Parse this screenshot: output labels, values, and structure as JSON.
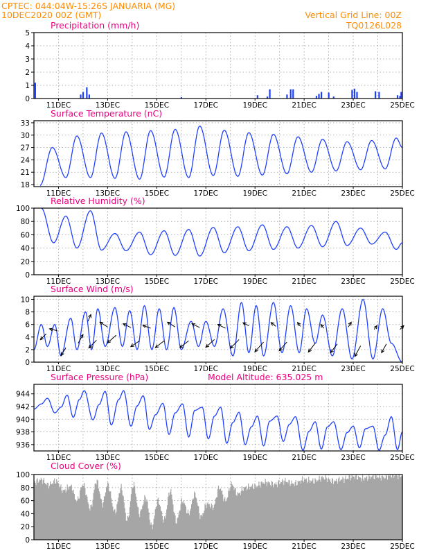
{
  "header": {
    "line1": "CPTEC:   044:04W-15:26S   JANUARIA (MG)",
    "line2": "10DEC2020 00Z (GMT)",
    "right1": "Vertical Grid Line: 00Z",
    "right2": "TQ0126L028"
  },
  "colors": {
    "header": "#ff8c00",
    "title": "#e8007c",
    "series": "#1f3fff",
    "wind_arrow": "#000000",
    "cloud": "#a6a6a6",
    "grid": "#999999"
  },
  "date_ticks": [
    "11DEC",
    "13DEC",
    "15DEC",
    "17DEC",
    "19DEC",
    "21DEC",
    "23DEC",
    "25DEC"
  ],
  "chart_data": [
    {
      "id": "precip",
      "type": "bar",
      "title": "Precipitation (mm/h)",
      "x_unit": "days since 10DEC2020 00Z",
      "xlim": [
        0,
        15
      ],
      "ylim": [
        0,
        5
      ],
      "yticks": [
        0,
        1,
        2,
        3,
        4,
        5
      ],
      "bars": [
        [
          0.05,
          1.2
        ],
        [
          1.9,
          0.3
        ],
        [
          2.0,
          0.5
        ],
        [
          2.15,
          0.85
        ],
        [
          2.25,
          0.3
        ],
        [
          6.0,
          0.1
        ],
        [
          9.1,
          0.25
        ],
        [
          9.5,
          0.15
        ],
        [
          9.6,
          0.7
        ],
        [
          10.3,
          0.3
        ],
        [
          10.45,
          0.7
        ],
        [
          10.55,
          0.7
        ],
        [
          11.5,
          0.2
        ],
        [
          11.6,
          0.35
        ],
        [
          11.7,
          0.5
        ],
        [
          12.0,
          0.45
        ],
        [
          12.2,
          0.15
        ],
        [
          12.95,
          0.65
        ],
        [
          13.05,
          0.75
        ],
        [
          13.15,
          0.5
        ],
        [
          13.9,
          0.55
        ],
        [
          14.05,
          0.5
        ],
        [
          14.8,
          0.25
        ],
        [
          14.9,
          0.2
        ],
        [
          14.95,
          0.5
        ]
      ]
    },
    {
      "id": "temp",
      "type": "line",
      "title": "Surface Temperature (nC)",
      "xlim": [
        0,
        15
      ],
      "ylim": [
        17.5,
        33.5
      ],
      "yticks": [
        18,
        21,
        24,
        27,
        30,
        33
      ],
      "daily": [
        [
          0.25,
          17.8
        ],
        [
          0.75,
          27
        ],
        [
          1.3,
          19.7
        ],
        [
          1.75,
          29.8
        ],
        [
          2.3,
          19.7
        ],
        [
          2.75,
          30.5
        ],
        [
          3.3,
          19.5
        ],
        [
          3.75,
          30.8
        ],
        [
          4.3,
          19.3
        ],
        [
          4.75,
          31.1
        ],
        [
          5.3,
          19.8
        ],
        [
          5.75,
          31.4
        ],
        [
          6.3,
          19.7
        ],
        [
          6.75,
          32.2
        ],
        [
          7.3,
          20.2
        ],
        [
          7.75,
          31.2
        ],
        [
          8.3,
          20
        ],
        [
          8.75,
          30.6
        ],
        [
          9.3,
          20.3
        ],
        [
          9.75,
          30.2
        ],
        [
          10.3,
          20.6
        ],
        [
          10.75,
          29.6
        ],
        [
          11.3,
          21
        ],
        [
          11.75,
          29
        ],
        [
          12.3,
          21.3
        ],
        [
          12.75,
          28.4
        ],
        [
          13.3,
          21.6
        ],
        [
          13.75,
          28.7
        ],
        [
          14.3,
          21.8
        ],
        [
          14.75,
          29.3
        ],
        [
          15,
          27
        ]
      ]
    },
    {
      "id": "rh",
      "type": "line",
      "title": "Relative Humidity (%)",
      "xlim": [
        0,
        15
      ],
      "ylim": [
        0,
        100
      ],
      "yticks": [
        0,
        20,
        40,
        60,
        80,
        100
      ],
      "daily": [
        [
          0.3,
          100
        ],
        [
          0.8,
          48
        ],
        [
          1.3,
          88
        ],
        [
          1.75,
          40
        ],
        [
          2.3,
          96
        ],
        [
          2.75,
          37
        ],
        [
          3.3,
          62
        ],
        [
          3.75,
          36
        ],
        [
          4.3,
          64
        ],
        [
          4.75,
          30
        ],
        [
          5.3,
          66
        ],
        [
          5.75,
          29
        ],
        [
          6.3,
          68
        ],
        [
          6.75,
          28
        ],
        [
          7.3,
          71
        ],
        [
          7.75,
          33
        ],
        [
          8.3,
          72
        ],
        [
          8.75,
          36
        ],
        [
          9.3,
          75
        ],
        [
          9.75,
          38
        ],
        [
          10.3,
          72
        ],
        [
          10.75,
          40
        ],
        [
          11.3,
          74
        ],
        [
          11.75,
          42
        ],
        [
          12.3,
          80
        ],
        [
          12.75,
          44
        ],
        [
          13.3,
          70
        ],
        [
          13.75,
          46
        ],
        [
          14.3,
          64
        ],
        [
          14.75,
          38
        ],
        [
          15,
          48
        ]
      ]
    },
    {
      "id": "wind",
      "type": "line",
      "title": "Surface Wind (m/s)",
      "xlim": [
        0,
        15
      ],
      "ylim": [
        0,
        10.5
      ],
      "yticks": [
        0,
        2,
        4,
        6,
        8,
        10
      ],
      "daily": [
        [
          0,
          2
        ],
        [
          0.3,
          6
        ],
        [
          0.55,
          2.5
        ],
        [
          0.85,
          6
        ],
        [
          1.1,
          1
        ],
        [
          1.5,
          7
        ],
        [
          1.75,
          2
        ],
        [
          2.1,
          8
        ],
        [
          2.35,
          2
        ],
        [
          2.6,
          8.5
        ],
        [
          2.9,
          2.5
        ],
        [
          3.3,
          8.7
        ],
        [
          3.6,
          2.5
        ],
        [
          3.9,
          8.2
        ],
        [
          4.2,
          2
        ],
        [
          4.5,
          9
        ],
        [
          4.8,
          2
        ],
        [
          5.1,
          8.5
        ],
        [
          5.4,
          2
        ],
        [
          5.7,
          8.7
        ],
        [
          6.0,
          2
        ],
        [
          6.4,
          6.5
        ],
        [
          6.7,
          2.5
        ],
        [
          7.0,
          6.5
        ],
        [
          7.35,
          2.5
        ],
        [
          7.7,
          8.5
        ],
        [
          8.1,
          1
        ],
        [
          8.45,
          9.5
        ],
        [
          8.75,
          1.5
        ],
        [
          9.05,
          9
        ],
        [
          9.35,
          1
        ],
        [
          9.75,
          9.5
        ],
        [
          10.1,
          1.5
        ],
        [
          10.45,
          9
        ],
        [
          10.8,
          1.5
        ],
        [
          11.1,
          8.5
        ],
        [
          11.45,
          3
        ],
        [
          11.75,
          7.5
        ],
        [
          12.15,
          1
        ],
        [
          12.55,
          8.5
        ],
        [
          12.95,
          0.5
        ],
        [
          13.4,
          10
        ],
        [
          13.8,
          0.5
        ],
        [
          14.2,
          8.5
        ],
        [
          14.55,
          3
        ],
        [
          15,
          0
        ]
      ],
      "arrows": [
        [
          0.5,
          4.5,
          -0.6,
          -0.6
        ],
        [
          0.95,
          5,
          -0.8,
          0.2
        ],
        [
          1.3,
          2.3,
          -0.5,
          -0.8
        ],
        [
          1.8,
          3,
          0.5,
          0.9
        ],
        [
          2.2,
          6.5,
          0.3,
          0.7
        ],
        [
          2.55,
          3.5,
          -0.8,
          -0.8
        ],
        [
          3.0,
          5.6,
          -0.8,
          0.5
        ],
        [
          3.35,
          4.3,
          -0.9,
          -0.8
        ],
        [
          3.95,
          5.5,
          -0.8,
          0.4
        ],
        [
          4.3,
          3.4,
          -0.9,
          -0.6
        ],
        [
          4.75,
          5.4,
          -0.8,
          0.3
        ],
        [
          5.3,
          3.4,
          -0.9,
          -0.7
        ],
        [
          5.75,
          5.6,
          -0.8,
          0.5
        ],
        [
          6.3,
          3.4,
          -0.9,
          -0.7
        ],
        [
          6.75,
          5.5,
          -0.8,
          0.4
        ],
        [
          7.35,
          3.6,
          -0.9,
          -0.8
        ],
        [
          7.8,
          5.4,
          -0.8,
          0.4
        ],
        [
          8.35,
          3.6,
          -0.9,
          -0.9
        ],
        [
          8.75,
          5.8,
          -0.6,
          0.3
        ],
        [
          9.35,
          3.2,
          -0.9,
          -1.0
        ],
        [
          9.85,
          5.7,
          -0.5,
          0.4
        ],
        [
          10.3,
          3.2,
          -0.8,
          -0.9
        ],
        [
          10.85,
          5.7,
          -0.3,
          0.4
        ],
        [
          11.45,
          3.0,
          -0.7,
          -0.9
        ],
        [
          11.8,
          5.4,
          -0.3,
          0.4
        ],
        [
          12.35,
          2.9,
          -0.7,
          -0.9
        ],
        [
          12.8,
          5.6,
          0.3,
          0.5
        ],
        [
          13.3,
          2.6,
          -0.6,
          -1.1
        ],
        [
          13.85,
          5.2,
          0.3,
          0.4
        ],
        [
          14.35,
          2.9,
          -0.5,
          -0.9
        ],
        [
          14.9,
          5.2,
          0.4,
          0.4
        ]
      ]
    },
    {
      "id": "pres",
      "type": "line",
      "title": "Surface Pressure (hPa)",
      "annotation": "Model Altitude: 635.025 m",
      "xlim": [
        0,
        15
      ],
      "ylim": [
        935,
        945.5
      ],
      "yticks": [
        936,
        938,
        940,
        942,
        944
      ],
      "daily": [
        [
          0,
          941.6
        ],
        [
          0.3,
          942.4
        ],
        [
          0.55,
          943.3
        ],
        [
          0.85,
          941
        ],
        [
          1.1,
          941.9
        ],
        [
          1.35,
          943.8
        ],
        [
          1.6,
          940.3
        ],
        [
          1.85,
          943.1
        ],
        [
          2.05,
          944.5
        ],
        [
          2.4,
          939.9
        ],
        [
          2.65,
          942.3
        ],
        [
          2.9,
          944.4
        ],
        [
          3.15,
          939.1
        ],
        [
          3.45,
          943.1
        ],
        [
          3.65,
          944.5
        ],
        [
          3.95,
          938.9
        ],
        [
          4.2,
          942.1
        ],
        [
          4.45,
          943.7
        ],
        [
          4.7,
          938.4
        ],
        [
          4.95,
          940.7
        ],
        [
          5.25,
          942.5
        ],
        [
          5.5,
          937.6
        ],
        [
          5.75,
          941
        ],
        [
          6.05,
          942.4
        ],
        [
          6.3,
          937.2
        ],
        [
          6.55,
          941.4
        ],
        [
          6.85,
          941.9
        ],
        [
          7.1,
          936.9
        ],
        [
          7.35,
          940.5
        ],
        [
          7.6,
          941.9
        ],
        [
          7.85,
          936.2
        ],
        [
          8.1,
          939.5
        ],
        [
          8.35,
          941.1
        ],
        [
          8.6,
          936
        ],
        [
          8.85,
          938.8
        ],
        [
          9.1,
          940.5
        ],
        [
          9.35,
          935.8
        ],
        [
          9.6,
          939.7
        ],
        [
          9.9,
          940.5
        ],
        [
          10.15,
          936.5
        ],
        [
          10.4,
          939.2
        ],
        [
          10.65,
          940.4
        ],
        [
          10.95,
          935.1
        ],
        [
          11.2,
          938.1
        ],
        [
          11.45,
          939.6
        ],
        [
          11.7,
          935.3
        ],
        [
          11.95,
          938.8
        ],
        [
          12.2,
          939.6
        ],
        [
          12.5,
          935.2
        ],
        [
          12.75,
          937.9
        ],
        [
          13.0,
          938.9
        ],
        [
          13.25,
          935.5
        ],
        [
          13.5,
          938.5
        ],
        [
          13.8,
          938.9
        ],
        [
          14.05,
          935.1
        ],
        [
          14.3,
          937.5
        ],
        [
          14.55,
          940.4
        ],
        [
          14.8,
          935.2
        ],
        [
          15,
          938
        ]
      ]
    },
    {
      "id": "cloud",
      "type": "area",
      "title": "Cloud Cover (%)",
      "xlim": [
        0,
        15
      ],
      "ylim": [
        0,
        100
      ],
      "yticks": [
        0,
        20,
        40,
        60,
        80,
        100
      ],
      "daily": [
        [
          0,
          88
        ],
        [
          0.3,
          92
        ],
        [
          0.6,
          84
        ],
        [
          0.9,
          90
        ],
        [
          1.2,
          75
        ],
        [
          1.5,
          82
        ],
        [
          1.75,
          60
        ],
        [
          2.0,
          85
        ],
        [
          2.3,
          48
        ],
        [
          2.55,
          90
        ],
        [
          2.8,
          55
        ],
        [
          3.0,
          85
        ],
        [
          3.3,
          42
        ],
        [
          3.55,
          80
        ],
        [
          3.8,
          30
        ],
        [
          4.05,
          85
        ],
        [
          4.3,
          40
        ],
        [
          4.55,
          65
        ],
        [
          4.8,
          20
        ],
        [
          5.05,
          60
        ],
        [
          5.3,
          30
        ],
        [
          5.55,
          75
        ],
        [
          5.8,
          28
        ],
        [
          6.05,
          60
        ],
        [
          6.3,
          40
        ],
        [
          6.55,
          70
        ],
        [
          6.8,
          35
        ],
        [
          7.05,
          55
        ],
        [
          7.3,
          50
        ],
        [
          7.55,
          80
        ],
        [
          7.8,
          60
        ],
        [
          8.05,
          85
        ],
        [
          8.3,
          70
        ],
        [
          8.6,
          80
        ],
        [
          9.0,
          82
        ],
        [
          9.4,
          88
        ],
        [
          9.8,
          85
        ],
        [
          10.2,
          90
        ],
        [
          10.6,
          86
        ],
        [
          11.0,
          92
        ],
        [
          11.4,
          90
        ],
        [
          11.8,
          95
        ],
        [
          12.2,
          90
        ],
        [
          12.6,
          93
        ],
        [
          13.0,
          97
        ],
        [
          13.4,
          94
        ],
        [
          13.8,
          97
        ],
        [
          14.2,
          96
        ],
        [
          14.6,
          99
        ],
        [
          15,
          98
        ]
      ]
    }
  ]
}
